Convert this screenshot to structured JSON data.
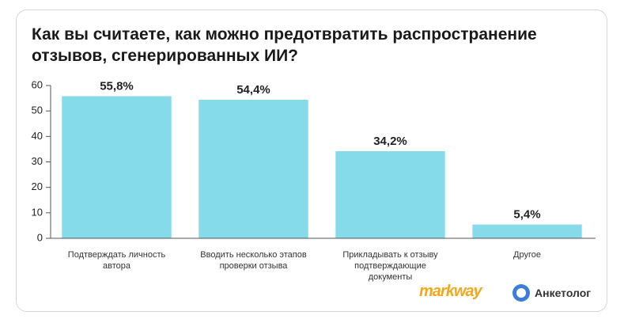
{
  "chart_data": {
    "type": "bar",
    "title": "Как вы считаете, как можно предотвратить распространение отзывов, сгенерированных ИИ?",
    "categories": [
      "Подтверждать личность автора",
      "Вводить несколько этапов проверки отзыва",
      "Прикладывать к отзыву подтверждающие документы",
      "Другое"
    ],
    "values": [
      55.8,
      54.4,
      34.2,
      5.4
    ],
    "value_labels": [
      "55,8%",
      "54,4%",
      "34,2%",
      "5,4%"
    ],
    "color": "#86dbeb",
    "ylim": [
      0,
      60
    ],
    "yticks": [
      0,
      10,
      20,
      30,
      40,
      50,
      60
    ],
    "grid": false
  },
  "logos": [
    "markway",
    "Анкетолог"
  ]
}
